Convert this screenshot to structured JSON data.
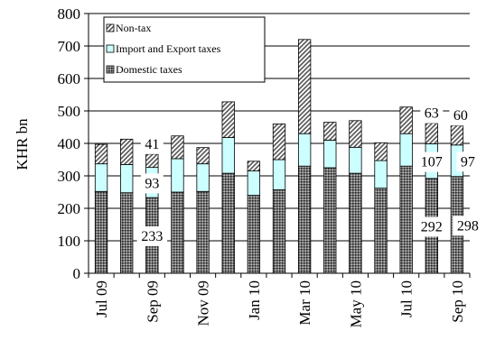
{
  "chart_data": {
    "type": "bar",
    "stacked": true,
    "ylabel": "KHR bn",
    "ylim": [
      0,
      800
    ],
    "yticks": [
      0,
      100,
      200,
      300,
      400,
      500,
      600,
      700,
      800
    ],
    "grid": true,
    "legend_position": "top-left",
    "categories": [
      "Jul 09",
      "Aug 09",
      "Sep 09",
      "Oct 09",
      "Nov 09",
      "Dec 09",
      "Jan 10",
      "Feb 10",
      "Mar 10",
      "Apr 10",
      "May 10",
      "Jun 10",
      "Jul 10",
      "Aug 10",
      "Sep 10"
    ],
    "x_tick_labels": [
      "Jul 09",
      "",
      "Sep 09",
      "",
      "Nov 09",
      "",
      "Jan 10",
      "",
      "Mar 10",
      "",
      "May 10",
      "",
      "Jul 10",
      "",
      "Sep 10"
    ],
    "series": [
      {
        "name": "Domestic taxes",
        "values": [
          252,
          248,
          233,
          250,
          252,
          308,
          240,
          257,
          330,
          325,
          308,
          262,
          330,
          292,
          298
        ],
        "color": "#555555",
        "pattern": "dots"
      },
      {
        "name": "Import and Export taxes",
        "values": [
          85,
          87,
          93,
          103,
          85,
          110,
          75,
          93,
          100,
          85,
          80,
          85,
          100,
          107,
          97
        ],
        "color": "#ccffff",
        "pattern": "solid"
      },
      {
        "name": "Non-tax",
        "values": [
          60,
          78,
          41,
          70,
          50,
          110,
          30,
          110,
          290,
          55,
          82,
          55,
          82,
          63,
          60
        ],
        "color": "#ffffff",
        "pattern": "diagonal"
      }
    ],
    "data_labels": [
      {
        "category": "Sep 09",
        "series": "Non-tax",
        "text": "41"
      },
      {
        "category": "Sep 09",
        "series": "Import and Export taxes",
        "text": "93"
      },
      {
        "category": "Sep 09",
        "series": "Domestic taxes",
        "text": "233"
      },
      {
        "category": "Aug 10",
        "series": "Non-tax",
        "text": "63"
      },
      {
        "category": "Aug 10",
        "series": "Import and Export taxes",
        "text": "107"
      },
      {
        "category": "Aug 10",
        "series": "Domestic taxes",
        "text": "292"
      },
      {
        "category": "Sep 10",
        "series": "Non-tax",
        "text": "60"
      },
      {
        "category": "Sep 10",
        "series": "Import and Export taxes",
        "text": "97"
      },
      {
        "category": "Sep 10",
        "series": "Domestic taxes",
        "text": "298"
      }
    ]
  }
}
